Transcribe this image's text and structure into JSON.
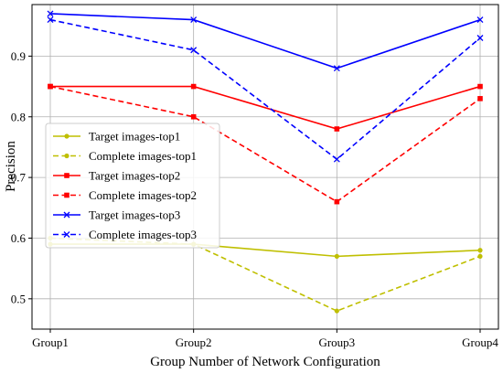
{
  "chart_data": {
    "type": "line",
    "categories": [
      "Group1",
      "Group2",
      "Group3",
      "Group4"
    ],
    "xlabel": "Group Number of Network Configuration",
    "ylabel": "Precision",
    "ylim": [
      0.45,
      0.985
    ],
    "yticks": [
      0.5,
      0.6,
      0.7,
      0.8,
      0.9
    ],
    "grid": true,
    "legend_position": "center-left",
    "series": [
      {
        "name": "Target images-top1",
        "values": [
          0.59,
          0.59,
          0.57,
          0.58
        ],
        "color": "#bfbf00",
        "dash": "solid",
        "marker": "dot"
      },
      {
        "name": "Complete images-top1",
        "values": [
          0.6,
          0.59,
          0.48,
          0.57
        ],
        "color": "#bfbf00",
        "dash": "dashed",
        "marker": "dot"
      },
      {
        "name": "Target images-top2",
        "values": [
          0.85,
          0.85,
          0.78,
          0.85
        ],
        "color": "#ff0000",
        "dash": "solid",
        "marker": "square"
      },
      {
        "name": "Complete images-top2",
        "values": [
          0.85,
          0.8,
          0.66,
          0.83
        ],
        "color": "#ff0000",
        "dash": "dashed",
        "marker": "square"
      },
      {
        "name": "Target images-top3",
        "values": [
          0.97,
          0.96,
          0.88,
          0.96
        ],
        "color": "#0000ff",
        "dash": "solid",
        "marker": "x"
      },
      {
        "name": "Complete images-top3",
        "values": [
          0.96,
          0.91,
          0.73,
          0.93
        ],
        "color": "#0000ff",
        "dash": "dashed",
        "marker": "x"
      }
    ]
  }
}
